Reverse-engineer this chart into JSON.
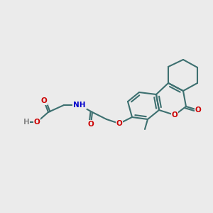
{
  "bg_color": "#ebebeb",
  "bond_color": "#3d7070",
  "bond_lw": 1.5,
  "atom_colors": {
    "O": "#cc0000",
    "N": "#0000cc",
    "H": "#888888",
    "C": "#3d7070"
  },
  "font_size": 7.5,
  "fig_size": [
    3.0,
    3.0
  ],
  "dpi": 100
}
